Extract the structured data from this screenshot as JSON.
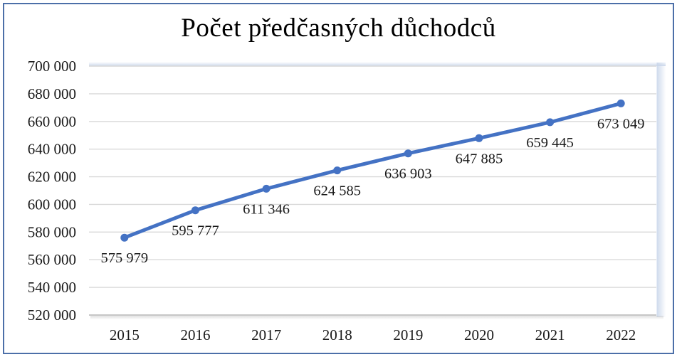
{
  "chart_data": {
    "type": "line",
    "title": "Počet předčasných důchodců",
    "xlabel": "",
    "ylabel": "",
    "categories": [
      "2015",
      "2016",
      "2017",
      "2018",
      "2019",
      "2020",
      "2021",
      "2022"
    ],
    "values": [
      575979,
      595777,
      611346,
      624585,
      636903,
      647885,
      659445,
      673049
    ],
    "data_labels": [
      "575 979",
      "595 777",
      "611 346",
      "624 585",
      "636 903",
      "647 885",
      "659 445",
      "673 049"
    ],
    "ylim": [
      520000,
      700000
    ],
    "y_tick_step": 20000,
    "y_tick_labels": [
      "520 000",
      "540 000",
      "560 000",
      "580 000",
      "600 000",
      "620 000",
      "640 000",
      "660 000",
      "680 000",
      "700 000"
    ],
    "grid": true,
    "legend_position": "none",
    "colors": {
      "line": "#4472C4",
      "marker": "#4472C4",
      "gridline": "#D9D9D9",
      "axis_line": "#BEBEBE",
      "frame_border": "#4C6FA8",
      "text": "#1A1A1A",
      "glow": "#C9D6EA",
      "axis_shadow": "#C9C9C9",
      "background": "#FFFFFF"
    }
  }
}
